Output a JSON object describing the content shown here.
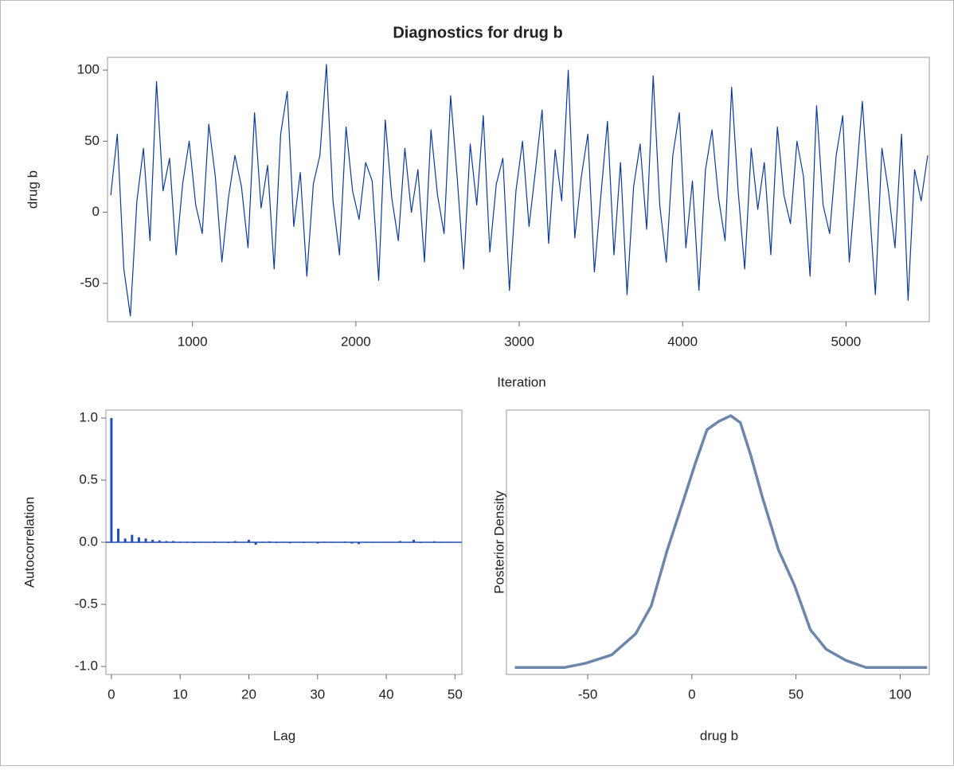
{
  "title": "Diagnostics for drug b",
  "chart_data": [
    {
      "type": "line",
      "xlabel": "Iteration",
      "ylabel": "drug b",
      "color": "#0b3a9c",
      "x": [
        500,
        540,
        580,
        620,
        660,
        700,
        740,
        780,
        820,
        860,
        900,
        940,
        980,
        1020,
        1060,
        1100,
        1140,
        1180,
        1220,
        1260,
        1300,
        1340,
        1380,
        1420,
        1460,
        1500,
        1540,
        1580,
        1620,
        1660,
        1700,
        1740,
        1780,
        1820,
        1860,
        1900,
        1940,
        1980,
        2020,
        2060,
        2100,
        2140,
        2180,
        2220,
        2260,
        2300,
        2340,
        2380,
        2420,
        2460,
        2500,
        2540,
        2580,
        2620,
        2660,
        2700,
        2740,
        2780,
        2820,
        2860,
        2900,
        2940,
        2980,
        3020,
        3060,
        3100,
        3140,
        3180,
        3220,
        3260,
        3300,
        3340,
        3380,
        3420,
        3460,
        3500,
        3540,
        3580,
        3620,
        3660,
        3700,
        3740,
        3780,
        3820,
        3860,
        3900,
        3940,
        3980,
        4020,
        4060,
        4100,
        4140,
        4180,
        4220,
        4260,
        4300,
        4340,
        4380,
        4420,
        4460,
        4500,
        4540,
        4580,
        4620,
        4660,
        4700,
        4740,
        4780,
        4820,
        4860,
        4900,
        4940,
        4980,
        5020,
        5060,
        5100,
        5140,
        5180,
        5220,
        5260,
        5300,
        5340,
        5380,
        5420,
        5460,
        5500
      ],
      "values": [
        12,
        55,
        -40,
        -73,
        8,
        45,
        -20,
        92,
        15,
        38,
        -30,
        20,
        50,
        5,
        -15,
        62,
        25,
        -35,
        10,
        40,
        18,
        -25,
        70,
        3,
        33,
        -40,
        55,
        85,
        -10,
        28,
        -45,
        20,
        40,
        104,
        8,
        -30,
        60,
        15,
        -5,
        35,
        22,
        -48,
        65,
        10,
        -20,
        45,
        0,
        30,
        -35,
        58,
        12,
        -15,
        82,
        25,
        -40,
        48,
        5,
        68,
        -28,
        20,
        38,
        -55,
        15,
        50,
        -10,
        30,
        72,
        -22,
        44,
        8,
        100,
        -18,
        25,
        55,
        -42,
        12,
        64,
        -30,
        35,
        -58,
        18,
        48,
        -12,
        96,
        5,
        -35,
        40,
        70,
        -25,
        22,
        -55,
        30,
        58,
        10,
        -20,
        88,
        15,
        -40,
        45,
        2,
        35,
        -30,
        60,
        12,
        -8,
        50,
        25,
        -45,
        75,
        5,
        -15,
        40,
        68,
        -35,
        20,
        78,
        10,
        -58,
        45,
        15,
        -25,
        55,
        -62,
        30,
        8,
        40
      ],
      "xlim": [
        480,
        5510
      ],
      "xticks": [
        1000,
        2000,
        3000,
        4000,
        5000
      ],
      "ylim": [
        -77,
        109
      ],
      "yticks": [
        100,
        50,
        0,
        -50
      ]
    },
    {
      "type": "bar",
      "xlabel": "Lag",
      "ylabel": "Autocorrelation",
      "color": "#1f4fb4",
      "x": [
        0,
        1,
        2,
        3,
        4,
        5,
        6,
        7,
        8,
        9,
        10,
        11,
        12,
        13,
        14,
        15,
        16,
        17,
        18,
        19,
        20,
        21,
        22,
        23,
        24,
        25,
        26,
        27,
        28,
        29,
        30,
        31,
        32,
        33,
        34,
        35,
        36,
        37,
        38,
        39,
        40,
        41,
        42,
        43,
        44,
        45,
        46,
        47,
        48,
        49,
        50
      ],
      "values": [
        1.0,
        0.11,
        0.03,
        0.06,
        0.04,
        0.03,
        0.02,
        0.015,
        0.01,
        0.01,
        0.005,
        0.005,
        -0.003,
        0.004,
        0.002,
        0.006,
        0.003,
        -0.005,
        0.01,
        0.002,
        0.02,
        -0.02,
        0.005,
        0.008,
        -0.006,
        0.004,
        -0.008,
        0.003,
        -0.004,
        0.002,
        -0.01,
        0.005,
        0.004,
        0.003,
        0.006,
        -0.01,
        -0.015,
        0.004,
        0.002,
        0.003,
        0.002,
        0.004,
        0.01,
        0.003,
        0.02,
        -0.005,
        0.003,
        0.008,
        0.002,
        0.004,
        0.003
      ],
      "xlim": [
        -0.8,
        51
      ],
      "xticks": [
        0,
        10,
        20,
        30,
        40,
        50
      ],
      "ylim": [
        -1.064,
        1.064
      ],
      "yticks": [
        {
          "value": 1,
          "label": "1.0"
        },
        0.5,
        {
          "value": 0,
          "label": "0.0"
        },
        -0.5,
        {
          "value": -1,
          "label": "-1.0"
        }
      ]
    },
    {
      "type": "line",
      "xlabel": "drug b",
      "ylabel": "Posterior Density",
      "color": "#6d86ab",
      "x": [
        -85,
        -61,
        -51,
        -38.5,
        -27,
        -19.5,
        -11.8,
        -5,
        1.9,
        7.3,
        13,
        18.7,
        23.3,
        28.2,
        34,
        41.6,
        49.2,
        56.9,
        64.5,
        74,
        83.6,
        99,
        113
      ],
      "values": [
        0,
        0,
        0.0003,
        0.0009,
        0.0024,
        0.0044,
        0.0084,
        0.0115,
        0.0147,
        0.017,
        0.0176,
        0.018,
        0.0175,
        0.0152,
        0.0121,
        0.0084,
        0.0059,
        0.0027,
        0.0013,
        0.0005,
        0,
        0,
        0
      ],
      "xlim": [
        -89,
        114
      ],
      "xticks": [
        -50,
        0,
        50,
        100
      ],
      "ylim": [
        -0.0005,
        0.0184
      ]
    }
  ]
}
